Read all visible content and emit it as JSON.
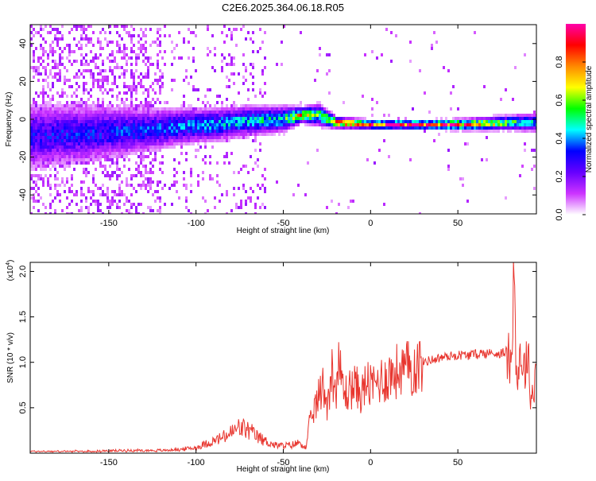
{
  "title": "C2E6.2025.364.06.18.R05",
  "colors": {
    "background": "#ffffff",
    "snr_line": "#e8362f",
    "frame": "#000000"
  },
  "chart_data": [
    {
      "type": "heatmap",
      "xlabel": "Height of straight line (km)",
      "ylabel": "Frequency (Hz)",
      "xlim": [
        -195,
        95
      ],
      "ylim": [
        -50,
        50
      ],
      "x_ticks": [
        -150,
        -100,
        -50,
        0,
        50
      ],
      "x_tick_labels": [
        "-150",
        "-100",
        "-50",
        "0",
        "50"
      ],
      "y_ticks": [
        -40,
        -20,
        0,
        20,
        40
      ],
      "y_tick_labels": [
        "-40",
        "-20",
        "0",
        "20",
        "40"
      ],
      "grid": false,
      "colorbar": {
        "label": "Normalized spectral amplitude",
        "range": [
          0,
          1
        ],
        "ticks": [
          0.0,
          0.2,
          0.4,
          0.6,
          0.8
        ],
        "tick_labels": [
          "0.0",
          "0.2",
          "0.4",
          "0.6",
          "0.8"
        ],
        "colormap": [
          "#ffffff",
          "#cc33ff",
          "#6600ff",
          "#0000ff",
          "#00ffff",
          "#00ff00",
          "#ffff00",
          "#ff8800",
          "#ff0000",
          "#ff00aa"
        ]
      },
      "ridge": [
        {
          "x": -190,
          "freq": -8,
          "amp": 0.3,
          "spread": 9
        },
        {
          "x": -170,
          "freq": -7,
          "amp": 0.32,
          "spread": 8
        },
        {
          "x": -150,
          "freq": -6,
          "amp": 0.33,
          "spread": 7
        },
        {
          "x": -130,
          "freq": -5,
          "amp": 0.35,
          "spread": 6
        },
        {
          "x": -110,
          "freq": -3,
          "amp": 0.38,
          "spread": 5
        },
        {
          "x": -90,
          "freq": -2,
          "amp": 0.42,
          "spread": 4.5
        },
        {
          "x": -70,
          "freq": 0,
          "amp": 0.45,
          "spread": 4
        },
        {
          "x": -50,
          "freq": 1,
          "amp": 0.5,
          "spread": 3.5
        },
        {
          "x": -40,
          "freq": 3,
          "amp": 0.8,
          "spread": 2
        },
        {
          "x": -30,
          "freq": 3,
          "amp": 0.55,
          "spread": 3
        },
        {
          "x": -20,
          "freq": -1,
          "amp": 0.8,
          "spread": 1.5
        },
        {
          "x": 0,
          "freq": -2,
          "amp": 0.92,
          "spread": 1.2
        },
        {
          "x": 30,
          "freq": -2,
          "amp": 0.95,
          "spread": 1.2
        },
        {
          "x": 55,
          "freq": -2,
          "amp": 0.85,
          "spread": 1.5
        },
        {
          "x": 80,
          "freq": -1,
          "amp": 0.55,
          "spread": 2
        },
        {
          "x": 95,
          "freq": -1,
          "amp": 0.45,
          "spread": 2.5
        }
      ]
    },
    {
      "type": "line",
      "xlabel": "Height of straight line (km)",
      "ylabel": "SNR (10 * v/v)",
      "y_multiplier_label": "(x10",
      "y_multiplier_exp": "4",
      "y_multiplier_close": ")",
      "xlim": [
        -195,
        95
      ],
      "ylim": [
        0,
        2.1
      ],
      "x_ticks": [
        -150,
        -100,
        -50,
        0,
        50
      ],
      "x_tick_labels": [
        "-150",
        "-100",
        "-50",
        "0",
        "50"
      ],
      "y_ticks": [
        0.5,
        1.0,
        1.5,
        2.0
      ],
      "y_tick_labels": [
        "0.5",
        "1.0",
        "1.5",
        "2.0"
      ],
      "grid": false,
      "series": [
        {
          "x": [
            -195,
            -180,
            -160,
            -140,
            -120,
            -110,
            -100,
            -95,
            -90,
            -85,
            -80,
            -75,
            -70,
            -65,
            -60,
            -55,
            -50,
            -45,
            -40,
            -37,
            -35,
            -33,
            -30,
            -27,
            -25,
            -22,
            -20,
            -18,
            -15,
            -12,
            -10,
            -7,
            -5,
            -2,
            0,
            5,
            10,
            15,
            20,
            25,
            30,
            35,
            40,
            45,
            50,
            55,
            60,
            65,
            70,
            75,
            78,
            80,
            82,
            84,
            86,
            88,
            90,
            92,
            95
          ],
          "y": [
            0.02,
            0.02,
            0.02,
            0.03,
            0.03,
            0.04,
            0.06,
            0.1,
            0.13,
            0.17,
            0.22,
            0.28,
            0.25,
            0.18,
            0.13,
            0.09,
            0.08,
            0.09,
            0.12,
            0.05,
            0.3,
            0.45,
            0.6,
            0.75,
            0.55,
            0.9,
            0.7,
            0.95,
            0.65,
            0.7,
            0.75,
            0.7,
            0.65,
            0.8,
            0.72,
            0.8,
            0.85,
            0.9,
            0.92,
            0.95,
            1.0,
            1.03,
            1.05,
            1.07,
            1.08,
            1.08,
            1.09,
            1.1,
            1.1,
            1.1,
            1.12,
            1.0,
            1.95,
            0.75,
            1.15,
            0.9,
            1.1,
            0.6,
            0.9
          ]
        }
      ]
    }
  ]
}
